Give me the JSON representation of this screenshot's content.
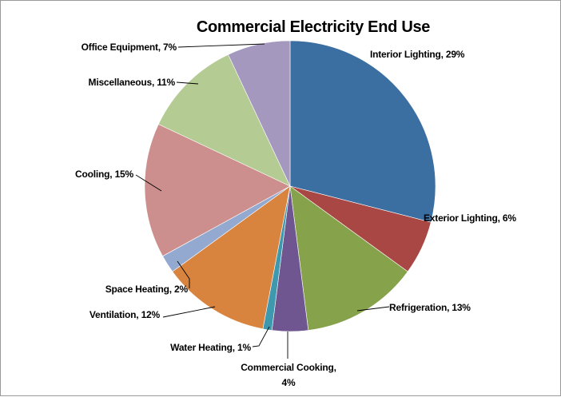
{
  "chart_data": {
    "type": "pie",
    "title": "Commercial Electricity End Use",
    "slices": [
      {
        "name": "Interior Lighting",
        "value": 29,
        "label": "Interior Lighting, 29%",
        "color": "#3b6ea1"
      },
      {
        "name": "Exterior Lighting",
        "value": 6,
        "label": "Exterior Lighting, 6%",
        "color": "#a94744"
      },
      {
        "name": "Refrigeration",
        "value": 13,
        "label": "Refrigeration, 13%",
        "color": "#86a34c"
      },
      {
        "name": "Commercial Cooking",
        "value": 4,
        "label_lines": [
          "Commercial Cooking,",
          "4%"
        ],
        "color": "#6f5690"
      },
      {
        "name": "Water Heating",
        "value": 1,
        "label": "Water Heating, 1%",
        "color": "#3e98ae"
      },
      {
        "name": "Ventilation",
        "value": 12,
        "label": "Ventilation, 12%",
        "color": "#d8843f"
      },
      {
        "name": "Space Heating",
        "value": 2,
        "label": "Space Heating, 2%",
        "color": "#94a9d0"
      },
      {
        "name": "Cooling",
        "value": 15,
        "label": "Cooling, 15%",
        "color": "#cd8f8e"
      },
      {
        "name": "Miscellaneous",
        "value": 11,
        "label": "Miscellaneous, 11%",
        "color": "#b5cb94"
      },
      {
        "name": "Office Equipment",
        "value": 7,
        "label": "Office Equipment, 7%",
        "color": "#a598bf"
      }
    ],
    "start_angle_deg": 0,
    "direction": "clockwise",
    "legend": "none",
    "data_labels": "outside-with-leader-lines"
  }
}
